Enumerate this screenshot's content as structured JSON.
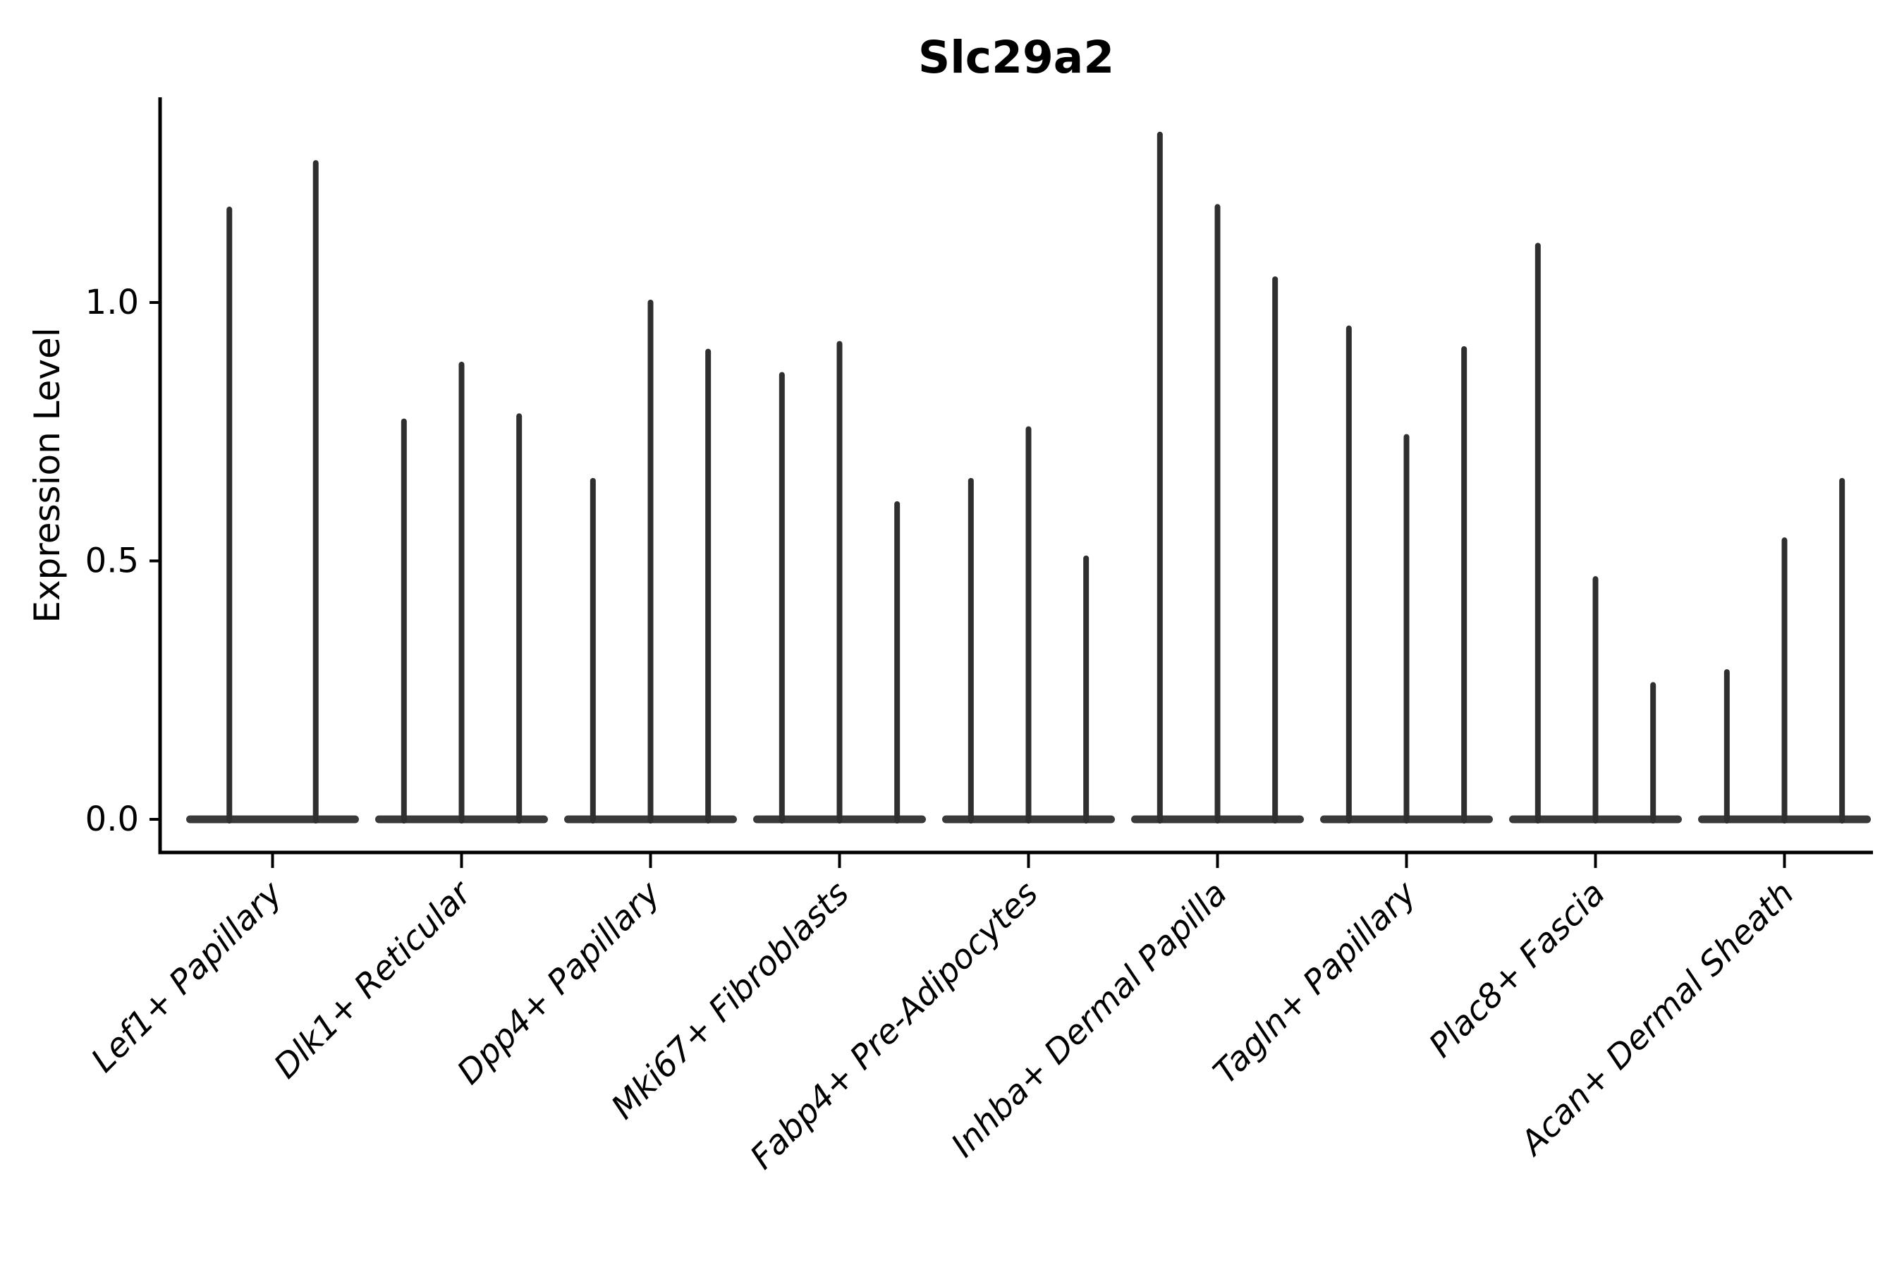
{
  "chart_data": {
    "type": "violin",
    "title": "Slc29a2",
    "ylabel": "Expression Level",
    "xlabel": "",
    "yticks": [
      0.0,
      0.5,
      1.0
    ],
    "ytick_labels": [
      "0.0",
      "0.5",
      "1.0"
    ],
    "ylim": [
      -0.064,
      1.397
    ],
    "grid": false,
    "spines": [
      "left",
      "bottom"
    ],
    "x_tick_label_rotation_deg": 45,
    "violin_style": "narrow-spike KDE violins, flat base at 0",
    "colors": {
      "violin": "#2f2f2f",
      "violin_base": "#3a3a3a",
      "axis": "#000000"
    },
    "groups": [
      {
        "label": "Lef1+ Papillary",
        "violin_maxima": [
          1.18,
          1.27
        ]
      },
      {
        "label": "Dlk1+ Reticular",
        "violin_maxima": [
          0.77,
          0.88,
          0.78
        ]
      },
      {
        "label": "Dpp4+ Papillary",
        "violin_maxima": [
          0.655,
          1.0,
          0.905
        ]
      },
      {
        "label": "Mki67+ Fibroblasts",
        "violin_maxima": [
          0.86,
          0.92,
          0.61
        ]
      },
      {
        "label": "Fabp4+ Pre-Adipocytes",
        "violin_maxima": [
          0.655,
          0.755,
          0.505
        ]
      },
      {
        "label": "Inhba+ Dermal Papilla",
        "violin_maxima": [
          1.325,
          1.185,
          1.045
        ]
      },
      {
        "label": "Tagln+ Papillary",
        "violin_maxima": [
          0.95,
          0.74,
          0.91
        ]
      },
      {
        "label": "Plac8+ Fascia",
        "violin_maxima": [
          1.11,
          0.465,
          0.26
        ]
      },
      {
        "label": "Acan+ Dermal Sheath",
        "violin_maxima": [
          0.285,
          0.54,
          0.655
        ]
      }
    ],
    "violin_min": 0.0
  }
}
